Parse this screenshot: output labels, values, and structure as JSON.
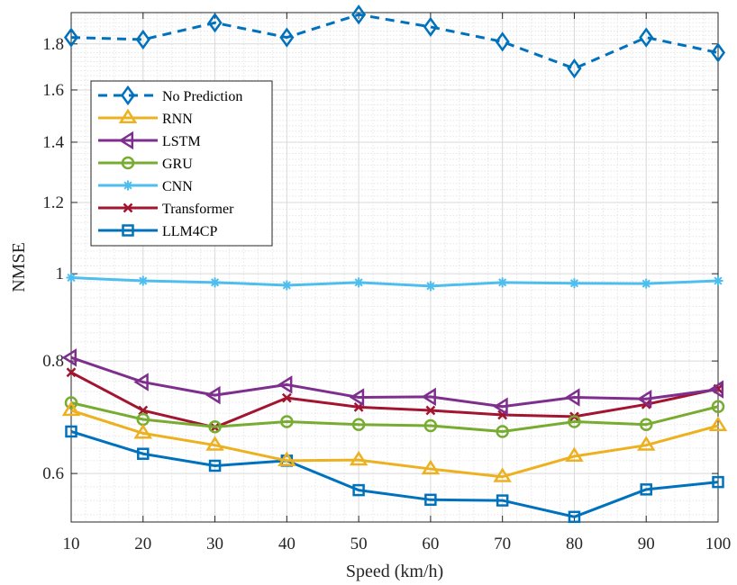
{
  "chart_data": {
    "type": "line",
    "xlabel": "Speed (km/h)",
    "ylabel": "NMSE",
    "x": [
      10,
      20,
      30,
      40,
      50,
      60,
      70,
      80,
      90,
      100
    ],
    "xlim": [
      10,
      100
    ],
    "xticks": [
      10,
      20,
      30,
      40,
      50,
      60,
      70,
      80,
      90,
      100
    ],
    "ylim": [
      0.53,
      1.95
    ],
    "yscale": "log",
    "yticks": [
      0.6,
      0.8,
      1,
      1.2,
      1.4,
      1.6,
      1.8
    ],
    "ytick_labels": [
      "0.6",
      "0.8",
      "1",
      "1.2",
      "1.4",
      "1.6",
      "1.8"
    ],
    "grid": true,
    "minor_grid": true,
    "legend_position": "top-left",
    "series": [
      {
        "name": "No Prediction",
        "color": "#0072BD",
        "marker": "diamond",
        "dash": true,
        "values": [
          1.83,
          1.82,
          1.9,
          1.83,
          1.94,
          1.88,
          1.81,
          1.69,
          1.83,
          1.76
        ]
      },
      {
        "name": "RNN",
        "color": "#EDB120",
        "marker": "triangle-up",
        "dash": false,
        "values": [
          0.705,
          0.665,
          0.645,
          0.62,
          0.621,
          0.607,
          0.595,
          0.627,
          0.645,
          0.678
        ]
      },
      {
        "name": "LSTM",
        "color": "#7E2F8E",
        "marker": "triangle-left",
        "dash": false,
        "values": [
          0.807,
          0.758,
          0.733,
          0.753,
          0.729,
          0.73,
          0.712,
          0.729,
          0.726,
          0.744
        ]
      },
      {
        "name": "GRU",
        "color": "#77AC30",
        "marker": "circle",
        "dash": false,
        "values": [
          0.719,
          0.689,
          0.676,
          0.685,
          0.68,
          0.678,
          0.668,
          0.685,
          0.68,
          0.712
        ]
      },
      {
        "name": "CNN",
        "color": "#4DBEEE",
        "marker": "asterisk",
        "dash": false,
        "values": [
          0.99,
          0.982,
          0.978,
          0.971,
          0.978,
          0.969,
          0.978,
          0.976,
          0.975,
          0.982
        ]
      },
      {
        "name": "Transformer",
        "color": "#A2142F",
        "marker": "x",
        "dash": false,
        "values": [
          0.777,
          0.705,
          0.675,
          0.728,
          0.711,
          0.705,
          0.697,
          0.694,
          0.716,
          0.745
        ]
      },
      {
        "name": "LLM4CP",
        "color": "#0072BD",
        "marker": "square",
        "dash": false,
        "values": [
          0.668,
          0.631,
          0.612,
          0.62,
          0.575,
          0.561,
          0.56,
          0.537,
          0.576,
          0.587
        ]
      }
    ]
  }
}
